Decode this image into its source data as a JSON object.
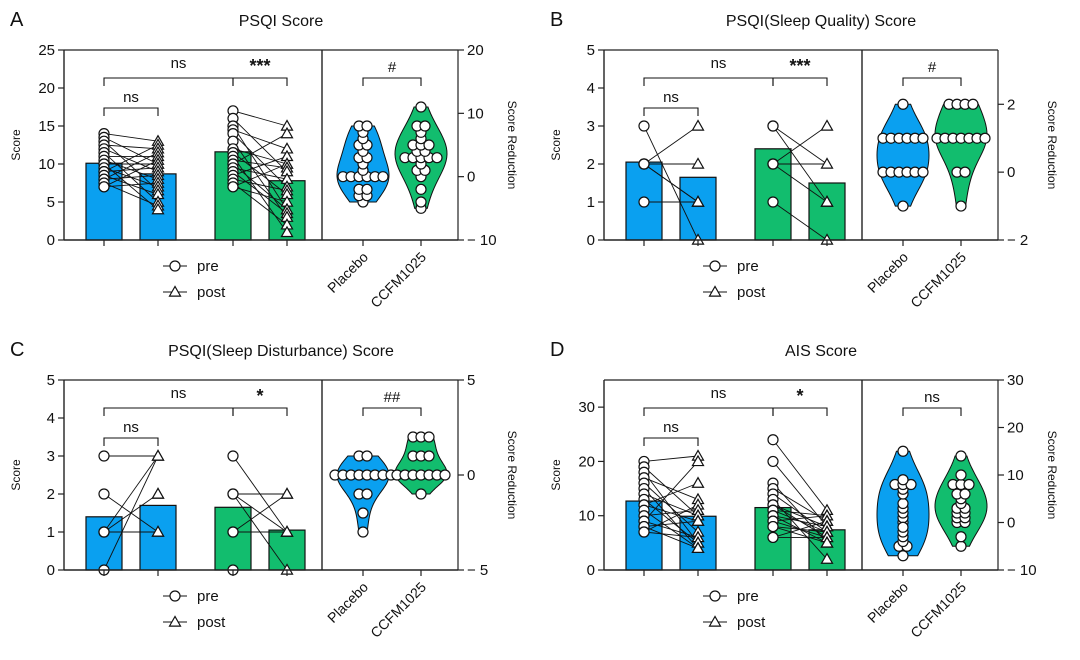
{
  "colors": {
    "placebo": "#0aa0f0",
    "ccfm": "#12bd6e",
    "line": "#111111",
    "point_fill": "#ffffff",
    "axis": "#222222"
  },
  "legend": {
    "pre": "pre",
    "post": "post"
  },
  "chart_data": [
    {
      "type": "bar",
      "panel_label": "A",
      "title": "PSQI Score",
      "ylabel": "Score",
      "ylabel_right": "Score Reduction",
      "ylim": [
        0,
        25
      ],
      "yticks": [
        0,
        5,
        10,
        15,
        20,
        25
      ],
      "ylim_right": [
        -10,
        20
      ],
      "yticks_right": [
        -10,
        0,
        10,
        20
      ],
      "categories": [
        "Placebo pre",
        "Placebo post",
        "CCFM1025 pre",
        "CCFM1025 post"
      ],
      "bars": [
        10.1,
        8.7,
        11.6,
        7.8
      ],
      "points": {
        "placebo_pre": [
          14,
          13.5,
          13,
          12.5,
          12,
          11.5,
          11,
          10.5,
          10,
          10,
          9.5,
          9,
          9,
          8.5,
          8,
          8,
          7.5,
          7,
          7
        ],
        "placebo_post": [
          13,
          12.5,
          12,
          11.5,
          11,
          10.5,
          10,
          10,
          9.5,
          9,
          8.5,
          8,
          7.5,
          7,
          6.5,
          6,
          5,
          4.5,
          4
        ],
        "ccfm_pre": [
          17,
          16,
          15,
          14.5,
          14,
          13,
          12,
          11.5,
          11,
          10.5,
          10,
          10,
          9.5,
          9,
          8.5,
          8,
          7.5,
          7,
          7
        ],
        "ccfm_post": [
          15,
          14,
          12,
          11,
          10,
          10,
          9.5,
          9,
          8,
          7,
          6.5,
          6,
          5,
          4,
          4,
          3.5,
          3,
          2,
          1
        ]
      },
      "significance": [
        {
          "label": "ns",
          "between": "placebo_pre-placebo_post"
        },
        {
          "label": "ns",
          "between": "placebo-ccfm"
        },
        {
          "label": "***",
          "between": "ccfm_pre-ccfm_post"
        },
        {
          "label": "#",
          "between": "placebo_reduction-ccfm_reduction"
        }
      ],
      "violin_categories": [
        "Placebo",
        "CCFM1025"
      ],
      "violin": {
        "placebo": [
          8,
          8,
          7,
          6,
          5,
          5,
          4,
          3,
          3,
          2,
          1,
          0,
          0,
          0,
          0,
          0,
          0,
          -2,
          -2,
          -3,
          -3,
          -4
        ],
        "ccfm": [
          11,
          8,
          8,
          7,
          6,
          5,
          5,
          5,
          4,
          4,
          3,
          3,
          3,
          3,
          3,
          2,
          1,
          1,
          0,
          -2,
          -4,
          -5
        ]
      }
    },
    {
      "type": "bar",
      "panel_label": "B",
      "title": "PSQI(Sleep Quality) Score",
      "ylabel": "Score",
      "ylabel_right": "Score Reduction",
      "ylim": [
        0,
        5
      ],
      "yticks": [
        0,
        1,
        2,
        3,
        4,
        5
      ],
      "ylim_right": [
        -2,
        3.6
      ],
      "yticks_right": [
        -2,
        0,
        2
      ],
      "categories": [
        "Placebo pre",
        "Placebo post",
        "CCFM1025 pre",
        "CCFM1025 post"
      ],
      "bars": [
        2.05,
        1.65,
        2.4,
        1.5
      ],
      "points": {
        "placebo_pre": [
          3,
          2,
          2,
          2,
          2,
          1
        ],
        "placebo_post": [
          3,
          2,
          1,
          1,
          1,
          0
        ],
        "ccfm_pre": [
          3,
          3,
          2,
          2,
          2,
          1
        ],
        "ccfm_post": [
          3,
          2,
          1,
          1,
          1,
          0
        ]
      },
      "links": {
        "placebo": [
          [
            3,
            0
          ],
          [
            2,
            3
          ],
          [
            2,
            2
          ],
          [
            2,
            1
          ],
          [
            2,
            1
          ],
          [
            1,
            1
          ]
        ],
        "ccfm": [
          [
            3,
            2
          ],
          [
            3,
            1
          ],
          [
            2,
            3
          ],
          [
            2,
            2
          ],
          [
            2,
            1
          ],
          [
            1,
            0
          ]
        ]
      },
      "significance": [
        {
          "label": "ns",
          "between": "placebo_pre-placebo_post"
        },
        {
          "label": "ns",
          "between": "placebo-ccfm"
        },
        {
          "label": "***",
          "between": "ccfm_pre-ccfm_post"
        },
        {
          "label": "#",
          "between": "placebo_reduction-ccfm_reduction"
        }
      ],
      "violin_categories": [
        "Placebo",
        "CCFM1025"
      ],
      "violin": {
        "placebo": [
          2,
          1,
          1,
          1,
          1,
          1,
          1,
          0,
          0,
          0,
          0,
          0,
          0,
          -1
        ],
        "ccfm": [
          2,
          2,
          2,
          2,
          1,
          1,
          1,
          1,
          1,
          1,
          1,
          0,
          0,
          -1
        ]
      }
    },
    {
      "type": "bar",
      "panel_label": "C",
      "title": "PSQI(Sleep Disturbance) Score",
      "ylabel": "Score",
      "ylabel_right": "Score Reduction",
      "ylim": [
        0,
        5
      ],
      "yticks": [
        0,
        1,
        2,
        3,
        4,
        5
      ],
      "ylim_right": [
        -5,
        5
      ],
      "yticks_right": [
        -5,
        0,
        5
      ],
      "categories": [
        "Placebo pre",
        "Placebo post",
        "CCFM1025 pre",
        "CCFM1025 post"
      ],
      "bars": [
        1.4,
        1.7,
        1.65,
        1.05
      ],
      "points": {
        "placebo_pre": [
          3,
          2,
          1,
          1,
          1,
          0
        ],
        "placebo_post": [
          3,
          3,
          2,
          2,
          1,
          1
        ],
        "ccfm_pre": [
          3,
          2,
          2,
          1,
          1,
          0
        ],
        "ccfm_post": [
          2,
          2,
          1,
          1,
          1,
          0
        ]
      },
      "links": {
        "placebo": [
          [
            3,
            3
          ],
          [
            2,
            1
          ],
          [
            1,
            3
          ],
          [
            1,
            2
          ],
          [
            1,
            1
          ],
          [
            0,
            3
          ]
        ],
        "ccfm": [
          [
            3,
            1
          ],
          [
            2,
            2
          ],
          [
            2,
            0
          ],
          [
            2,
            1
          ],
          [
            1,
            2
          ],
          [
            1,
            1
          ]
        ]
      },
      "significance": [
        {
          "label": "ns",
          "between": "placebo_pre-placebo_post"
        },
        {
          "label": "ns",
          "between": "placebo-ccfm"
        },
        {
          "label": "*",
          "between": "ccfm_pre-ccfm_post"
        },
        {
          "label": "##",
          "between": "placebo_reduction-ccfm_reduction"
        }
      ],
      "violin_categories": [
        "Placebo",
        "CCFM1025"
      ],
      "violin": {
        "placebo": [
          1,
          1,
          0,
          0,
          0,
          0,
          0,
          0,
          0,
          0,
          -1,
          -1,
          -2,
          -3
        ],
        "ccfm": [
          2,
          2,
          2,
          1,
          1,
          1,
          0,
          0,
          0,
          0,
          0,
          0,
          0,
          -1
        ]
      }
    },
    {
      "type": "bar",
      "panel_label": "D",
      "title": "AIS Score",
      "ylabel": "Score",
      "ylabel_right": "Score Reduction",
      "ylim": [
        0,
        35
      ],
      "yticks": [
        0,
        10,
        20,
        30
      ],
      "ylim_right": [
        -10,
        30
      ],
      "yticks_right": [
        -10,
        0,
        10,
        20,
        30
      ],
      "categories": [
        "Placebo pre",
        "Placebo post",
        "CCFM1025 pre",
        "CCFM1025 post"
      ],
      "bars": [
        12.7,
        9.9,
        11.5,
        7.4
      ],
      "points": {
        "placebo_pre": [
          20,
          19,
          18,
          17,
          16,
          15,
          14,
          13,
          12,
          12,
          11,
          10,
          9,
          9,
          8,
          8,
          7,
          7
        ],
        "placebo_post": [
          21,
          20,
          16,
          13,
          12,
          11,
          10,
          10,
          9,
          9,
          7,
          6,
          6,
          5,
          5,
          4,
          4,
          4
        ],
        "ccfm_pre": [
          24,
          20,
          16,
          15,
          14,
          13,
          12,
          12,
          11,
          11,
          10,
          10,
          9,
          9,
          8,
          8,
          6,
          6
        ],
        "ccfm_post": [
          11,
          10,
          10,
          9,
          9,
          8,
          8,
          8,
          7,
          7,
          7,
          6,
          6,
          6,
          5,
          5,
          5,
          2
        ]
      },
      "significance": [
        {
          "label": "ns",
          "between": "placebo_pre-placebo_post"
        },
        {
          "label": "ns",
          "between": "placebo-ccfm"
        },
        {
          "label": "*",
          "between": "ccfm_pre-ccfm_post"
        },
        {
          "label": "ns",
          "between": "placebo_reduction-ccfm_reduction"
        }
      ],
      "violin_categories": [
        "Placebo",
        "CCFM1025"
      ],
      "violin": {
        "placebo": [
          15,
          9,
          8,
          8,
          8,
          7,
          6,
          4,
          3,
          2,
          1,
          0,
          -1,
          -2,
          -3,
          -4,
          -5,
          -5,
          -7
        ],
        "ccfm": [
          14,
          10,
          8,
          8,
          8,
          6,
          6,
          5,
          4,
          3,
          3,
          2,
          2,
          1,
          1,
          0,
          0,
          -3,
          -5
        ]
      }
    }
  ]
}
